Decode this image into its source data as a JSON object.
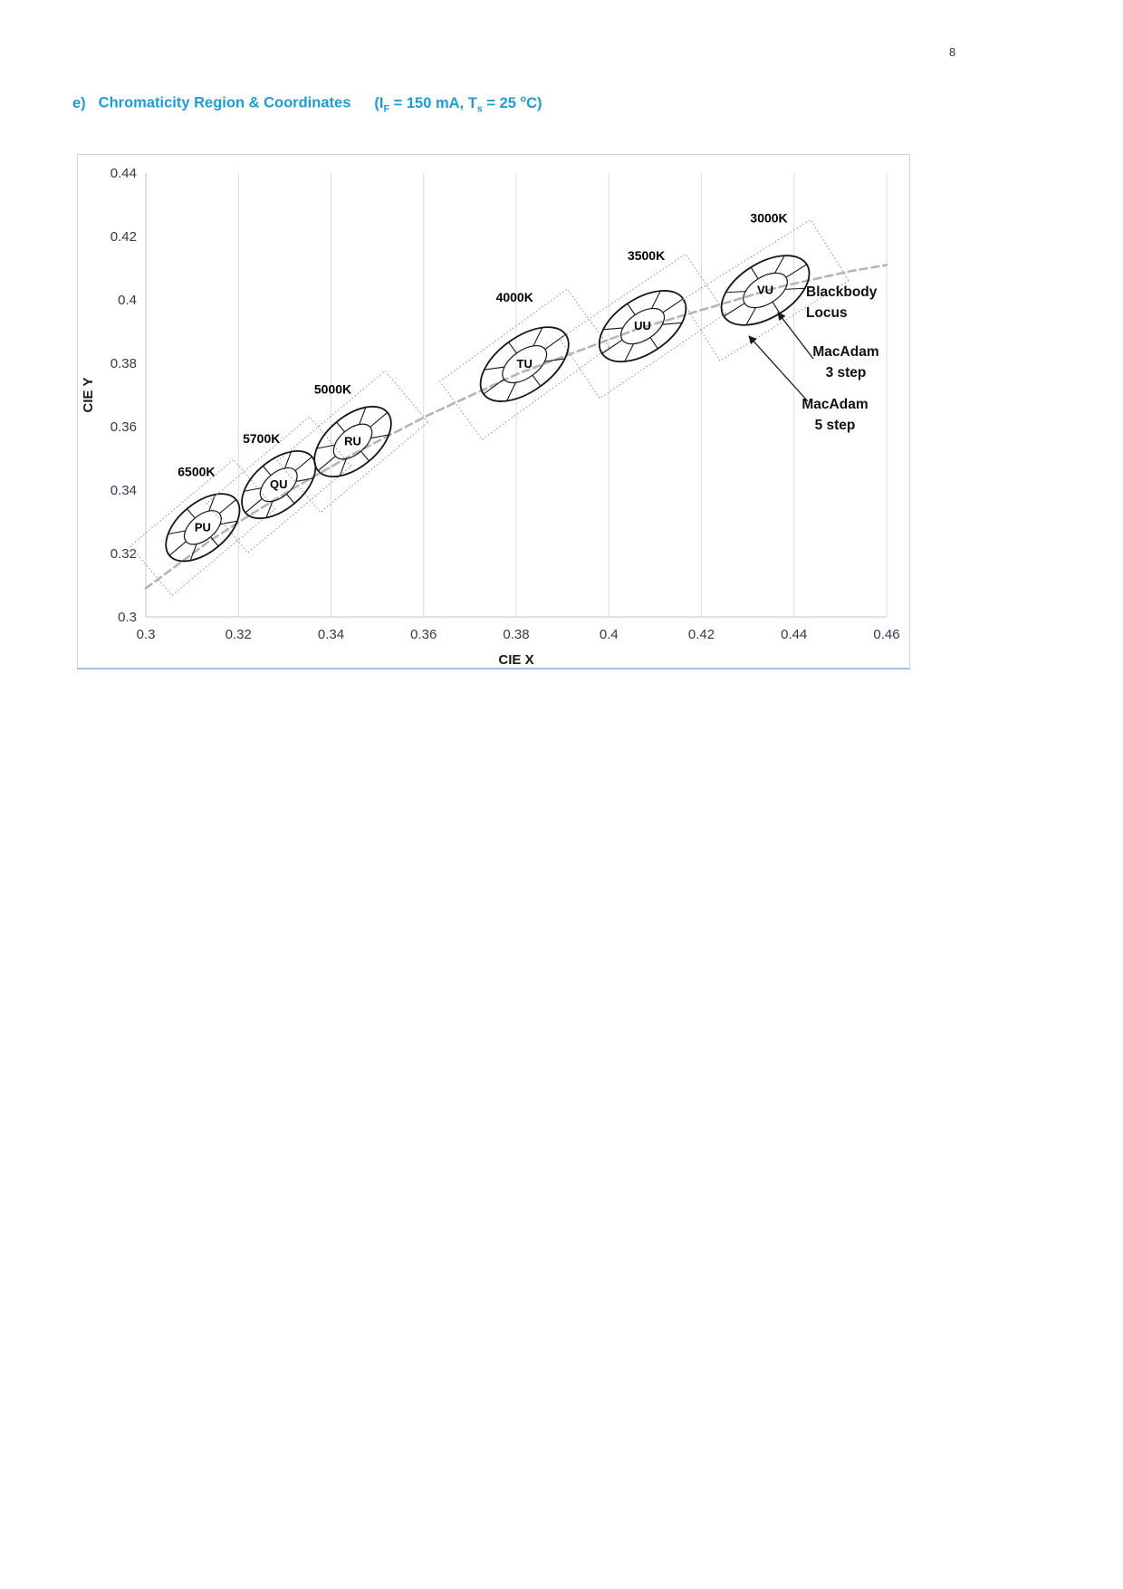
{
  "page": {
    "number": "8"
  },
  "heading": {
    "prefix": "e)",
    "title": "Chromaticity Region & Coordinates",
    "cond_pre": "(I",
    "cond_sub1": "F",
    "cond_mid1": " = 150 mA, T",
    "cond_sub2": "s",
    "cond_mid2": " = 25 ",
    "cond_sup": "o",
    "cond_end": "C)"
  },
  "chart_data": {
    "type": "scatter",
    "title": "",
    "xlabel": "CIE X",
    "ylabel": "CIE Y",
    "xlim": [
      0.3,
      0.46
    ],
    "ylim": [
      0.3,
      0.44
    ],
    "xticks": [
      "0.3",
      "0.32",
      "0.34",
      "0.36",
      "0.38",
      "0.4",
      "0.42",
      "0.44",
      "0.46"
    ],
    "yticks": [
      "0.3",
      "0.32",
      "0.34",
      "0.36",
      "0.38",
      "0.4",
      "0.42",
      "0.44"
    ],
    "grid": "vertical-only",
    "legend": "none",
    "blackbody_locus": [
      [
        0.3,
        0.309
      ],
      [
        0.3135,
        0.3237
      ],
      [
        0.3221,
        0.3318
      ],
      [
        0.3324,
        0.341
      ],
      [
        0.3451,
        0.3516
      ],
      [
        0.3608,
        0.3635
      ],
      [
        0.3805,
        0.3768
      ],
      [
        0.4059,
        0.3907
      ],
      [
        0.4369,
        0.4041
      ],
      [
        0.452,
        0.409
      ],
      [
        0.46,
        0.411
      ]
    ],
    "bins": [
      {
        "name": "PU",
        "cct": "6500K",
        "x": 0.3123,
        "y": 0.3282,
        "tilt": 40,
        "a": 48,
        "b": 27,
        "label_offset": [
          -7,
          -57
        ]
      },
      {
        "name": "QU",
        "cct": "5700K",
        "x": 0.3287,
        "y": 0.3417,
        "tilt": 40,
        "a": 48,
        "b": 27,
        "label_offset": [
          -19,
          -46
        ]
      },
      {
        "name": "RU",
        "cct": "5000K",
        "x": 0.3447,
        "y": 0.3553,
        "tilt": 40,
        "a": 50,
        "b": 28,
        "label_offset": [
          -22,
          -53
        ]
      },
      {
        "name": "TU",
        "cct": "4000K",
        "x": 0.3818,
        "y": 0.3797,
        "tilt": 36,
        "a": 56,
        "b": 30,
        "label_offset": [
          -11,
          -69
        ]
      },
      {
        "name": "UU",
        "cct": "3500K",
        "x": 0.4073,
        "y": 0.3917,
        "tilt": 34,
        "a": 54,
        "b": 30,
        "label_offset": [
          4,
          -73
        ]
      },
      {
        "name": "VU",
        "cct": "3000K",
        "x": 0.4338,
        "y": 0.403,
        "tilt": 32,
        "a": 54,
        "b": 30,
        "label_offset": [
          4,
          -75
        ]
      }
    ],
    "annotations": {
      "blackbody_locus": {
        "line1": "Blackbody",
        "line2": "Locus"
      },
      "macadam_3step": {
        "line1": "MacAdam",
        "line2": "3 step"
      },
      "macadam_5step": {
        "line1": "MacAdam",
        "line2": "5 step"
      }
    }
  }
}
